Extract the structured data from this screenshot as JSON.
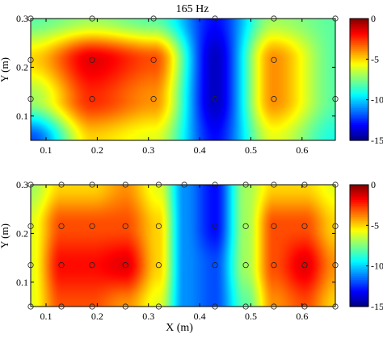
{
  "figure": {
    "title": "165 Hz",
    "xlabel": "X (m)"
  },
  "chart_data": [
    {
      "type": "heatmap",
      "title": "165 Hz",
      "xlabel": "",
      "ylabel": "Y (m)",
      "xlim": [
        0.07,
        0.665
      ],
      "ylim": [
        0.05,
        0.3
      ],
      "xticks": [
        "0.1",
        "0.2",
        "0.3",
        "0.4",
        "0.5",
        "0.6"
      ],
      "xtick_values": [
        0.1,
        0.2,
        0.3,
        0.4,
        0.5,
        0.6
      ],
      "yticks": [
        "0.1",
        "0.2",
        "0.3"
      ],
      "ytick_values": [
        0.1,
        0.2,
        0.3
      ],
      "colorbar": {
        "min": -15,
        "max": 0,
        "ticks": [
          "0",
          "-5",
          "-10",
          "-15"
        ],
        "tick_values": [
          0,
          -5,
          -10,
          -15
        ],
        "colormap": "jet"
      },
      "grid_x": [
        0.07,
        0.19,
        0.31,
        0.43,
        0.545,
        0.665
      ],
      "grid_y": [
        0.3,
        0.215,
        0.135,
        0.05
      ],
      "z": [
        [
          -8,
          -7,
          -8,
          -13,
          -7,
          -8
        ],
        [
          -5,
          -1.5,
          -3,
          -14,
          -4,
          -8
        ],
        [
          -7,
          -2.5,
          -4,
          -14,
          -4,
          -8
        ],
        [
          -12,
          -5,
          -6,
          -13,
          -6,
          -9
        ]
      ],
      "markers": [
        [
          0.07,
          0.3
        ],
        [
          0.19,
          0.3
        ],
        [
          0.31,
          0.3
        ],
        [
          0.43,
          0.3
        ],
        [
          0.545,
          0.3
        ],
        [
          0.665,
          0.3
        ],
        [
          0.07,
          0.215
        ],
        [
          0.19,
          0.215
        ],
        [
          0.31,
          0.215
        ],
        [
          0.545,
          0.215
        ],
        [
          0.07,
          0.135
        ],
        [
          0.19,
          0.135
        ],
        [
          0.31,
          0.135
        ],
        [
          0.43,
          0.135
        ],
        [
          0.545,
          0.135
        ],
        [
          0.665,
          0.135
        ]
      ]
    },
    {
      "type": "heatmap",
      "title": "",
      "xlabel": "X (m)",
      "ylabel": "Y (m)",
      "xlim": [
        0.07,
        0.665
      ],
      "ylim": [
        0.05,
        0.3
      ],
      "xticks": [
        "0.1",
        "0.2",
        "0.3",
        "0.4",
        "0.5",
        "0.6"
      ],
      "xtick_values": [
        0.1,
        0.2,
        0.3,
        0.4,
        0.5,
        0.6
      ],
      "yticks": [
        "0.1",
        "0.2",
        "0.3"
      ],
      "ytick_values": [
        0.1,
        0.2,
        0.3
      ],
      "colorbar": {
        "min": -15,
        "max": 0,
        "ticks": [
          "0",
          "-5",
          "-10",
          "-15"
        ],
        "tick_values": [
          0,
          -5,
          -10,
          -15
        ],
        "colormap": "jet"
      },
      "grid_x": [
        0.07,
        0.13,
        0.19,
        0.255,
        0.32,
        0.37,
        0.43,
        0.49,
        0.545,
        0.605,
        0.665
      ],
      "grid_y": [
        0.3,
        0.215,
        0.135,
        0.05
      ],
      "z": [
        [
          -7,
          -5,
          -5,
          -4,
          -6,
          -11,
          -13,
          -7,
          -5,
          -5,
          -6
        ],
        [
          -6,
          -3,
          -3,
          -3,
          -5,
          -11,
          -13,
          -7,
          -3,
          -3,
          -5
        ],
        [
          -6,
          -2,
          -2,
          -1.5,
          -5,
          -11,
          -12,
          -7,
          -3,
          -1.5,
          -4
        ],
        [
          -6,
          -3,
          -3,
          -4,
          -6,
          -11,
          -12,
          -8,
          -4,
          -3,
          -5
        ]
      ],
      "markers": [
        [
          0.07,
          0.3
        ],
        [
          0.13,
          0.3
        ],
        [
          0.19,
          0.3
        ],
        [
          0.255,
          0.3
        ],
        [
          0.32,
          0.3
        ],
        [
          0.37,
          0.3
        ],
        [
          0.43,
          0.3
        ],
        [
          0.49,
          0.3
        ],
        [
          0.545,
          0.3
        ],
        [
          0.605,
          0.3
        ],
        [
          0.665,
          0.3
        ],
        [
          0.07,
          0.215
        ],
        [
          0.13,
          0.215
        ],
        [
          0.19,
          0.215
        ],
        [
          0.255,
          0.215
        ],
        [
          0.32,
          0.215
        ],
        [
          0.43,
          0.215
        ],
        [
          0.49,
          0.215
        ],
        [
          0.545,
          0.215
        ],
        [
          0.605,
          0.215
        ],
        [
          0.665,
          0.215
        ],
        [
          0.07,
          0.135
        ],
        [
          0.13,
          0.135
        ],
        [
          0.19,
          0.135
        ],
        [
          0.255,
          0.135
        ],
        [
          0.32,
          0.135
        ],
        [
          0.43,
          0.135
        ],
        [
          0.49,
          0.135
        ],
        [
          0.545,
          0.135
        ],
        [
          0.605,
          0.135
        ],
        [
          0.665,
          0.135
        ],
        [
          0.07,
          0.05
        ],
        [
          0.13,
          0.05
        ],
        [
          0.19,
          0.05
        ],
        [
          0.255,
          0.05
        ],
        [
          0.32,
          0.05
        ],
        [
          0.43,
          0.05
        ],
        [
          0.49,
          0.05
        ],
        [
          0.545,
          0.05
        ],
        [
          0.605,
          0.05
        ],
        [
          0.665,
          0.05
        ]
      ]
    }
  ]
}
